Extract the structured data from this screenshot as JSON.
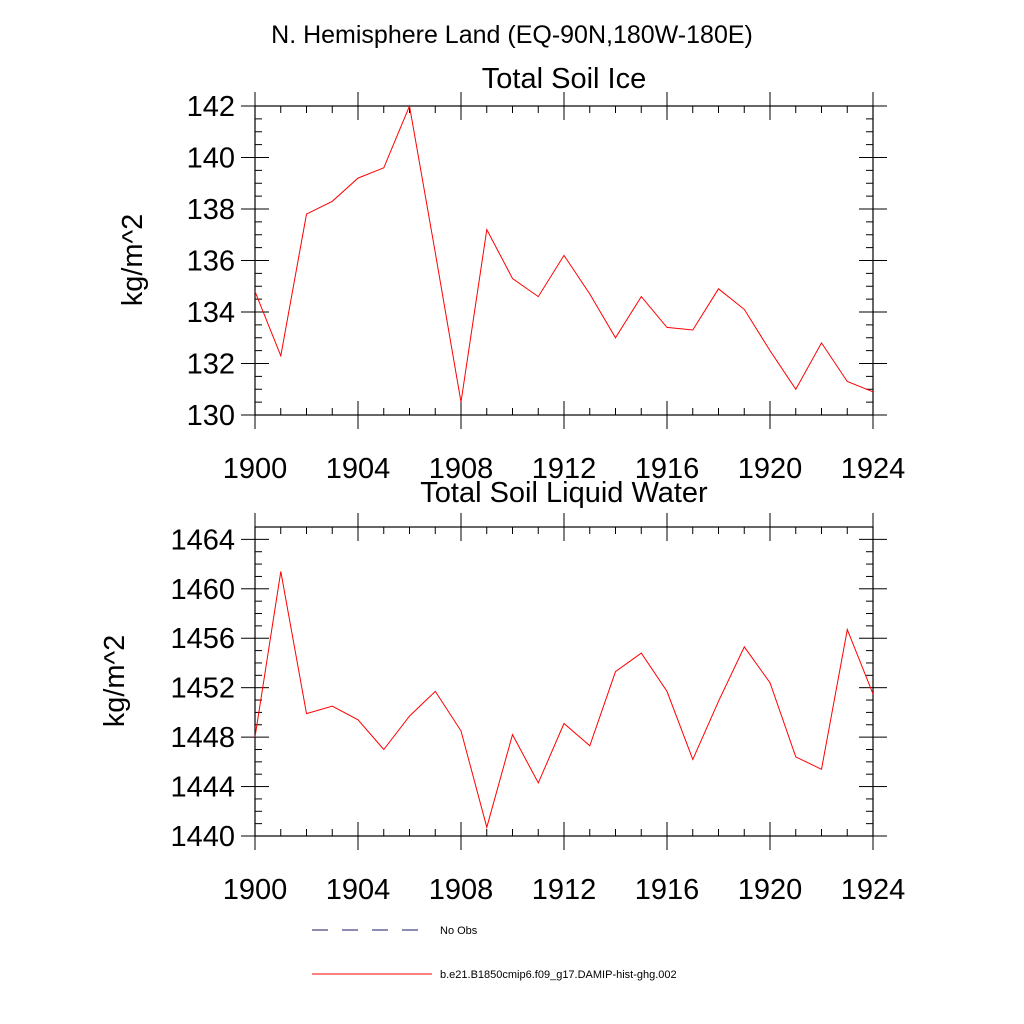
{
  "figure": {
    "title": "N. Hemisphere Land (EQ-90N,180W-180E)"
  },
  "chart_data": [
    {
      "type": "line",
      "title": "Total Soil Ice",
      "xlabel": "",
      "ylabel": "kg/m^2",
      "xlim": [
        1900,
        1924
      ],
      "ylim": [
        130,
        142
      ],
      "xticks": [
        1900,
        1904,
        1908,
        1912,
        1916,
        1920,
        1924
      ],
      "yticks": [
        130,
        132,
        134,
        136,
        138,
        140,
        142
      ],
      "x": [
        1900,
        1901,
        1902,
        1903,
        1904,
        1905,
        1906,
        1907,
        1908,
        1909,
        1910,
        1911,
        1912,
        1913,
        1914,
        1915,
        1916,
        1917,
        1918,
        1919,
        1920,
        1921,
        1922,
        1923,
        1924
      ],
      "series": [
        {
          "name": "b.e21.B1850cmip6.f09_g17.DAMIP-hist-ghg.002",
          "color": "#ff0000",
          "values": [
            134.8,
            132.3,
            137.8,
            138.3,
            139.2,
            139.6,
            142.0,
            136.3,
            130.5,
            137.2,
            135.3,
            134.6,
            136.2,
            134.7,
            133.0,
            134.6,
            133.4,
            133.3,
            134.9,
            134.1,
            132.5,
            131.0,
            132.8,
            131.3,
            130.9
          ]
        }
      ]
    },
    {
      "type": "line",
      "title": "Total Soil Liquid Water",
      "xlabel": "",
      "ylabel": "kg/m^2",
      "xlim": [
        1900,
        1924
      ],
      "ylim": [
        1440,
        1465
      ],
      "xticks": [
        1900,
        1904,
        1908,
        1912,
        1916,
        1920,
        1924
      ],
      "yticks": [
        1440,
        1444,
        1448,
        1452,
        1456,
        1460,
        1464
      ],
      "x": [
        1900,
        1901,
        1902,
        1903,
        1904,
        1905,
        1906,
        1907,
        1908,
        1909,
        1910,
        1911,
        1912,
        1913,
        1914,
        1915,
        1916,
        1917,
        1918,
        1919,
        1920,
        1921,
        1922,
        1923,
        1924
      ],
      "series": [
        {
          "name": "b.e21.B1850cmip6.f09_g17.DAMIP-hist-ghg.002",
          "color": "#ff0000",
          "values": [
            1448.0,
            1461.4,
            1449.9,
            1450.5,
            1449.4,
            1447.0,
            1449.7,
            1451.7,
            1448.5,
            1440.7,
            1448.2,
            1444.3,
            1449.1,
            1447.3,
            1453.3,
            1454.8,
            1451.7,
            1446.2,
            1450.9,
            1455.3,
            1452.4,
            1446.4,
            1445.4,
            1456.7,
            1451.5
          ]
        }
      ]
    }
  ],
  "legend": {
    "placement": "bottom",
    "entries": [
      {
        "label": "No Obs",
        "style": "dashed",
        "color": "#1a1a66"
      },
      {
        "label": "b.e21.B1850cmip6.f09_g17.DAMIP-hist-ghg.002",
        "style": "solid",
        "color": "#ff0000"
      }
    ]
  }
}
